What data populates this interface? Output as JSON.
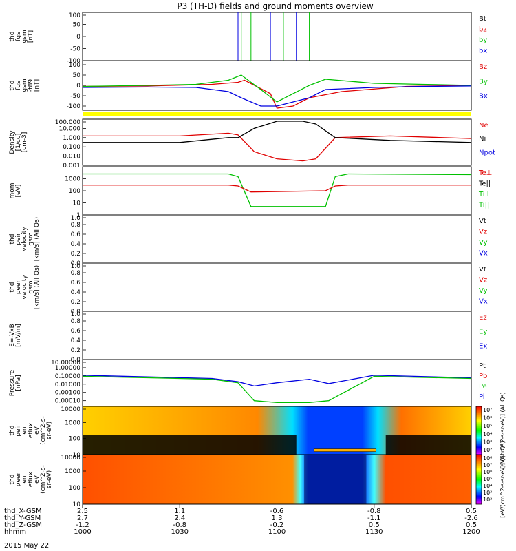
{
  "title": "P3 (TH-D) fields and ground moments overview",
  "date_label": "2015 May 22",
  "colors": {
    "black": "#000000",
    "red": "#e00000",
    "green": "#00c000",
    "blue": "#0000e0",
    "yellow": "#ffff00"
  },
  "chart_data": [
    {
      "type": "line",
      "panel": "fgs",
      "ylabel": [
        "thd",
        "fgs",
        "gsm",
        "[nT]"
      ],
      "yticks": [
        "100",
        "50",
        "0",
        "-50",
        "-100"
      ],
      "ylim": [
        -100,
        100
      ],
      "legend": [
        {
          "name": "Bt",
          "color": "black"
        },
        {
          "name": "bz",
          "color": "red"
        },
        {
          "name": "by",
          "color": "green"
        },
        {
          "name": "bx",
          "color": "blue"
        }
      ],
      "note": "mostly off-scale; vertical traces near 1045–1110 UT"
    },
    {
      "type": "line",
      "panel": "fgs_dsl",
      "ylabel": [
        "thd",
        "fgs",
        "gsm",
        "-t89",
        "[nT]"
      ],
      "yticks": [
        "100",
        "50",
        "0",
        "-50",
        "-100"
      ],
      "ylim": [
        -120,
        120
      ],
      "legend": [
        {
          "name": "Bz",
          "color": "red"
        },
        {
          "name": "By",
          "color": "green"
        },
        {
          "name": "Bx",
          "color": "blue"
        }
      ],
      "series": [
        {
          "name": "Bz",
          "x": [
            1000,
            1020,
            1040,
            1048,
            1050,
            1058,
            1100,
            1105,
            1110,
            1120,
            1140,
            1200
          ],
          "y": [
            -5,
            -3,
            5,
            15,
            25,
            -40,
            -110,
            -100,
            -60,
            -30,
            -5,
            0
          ]
        },
        {
          "name": "By",
          "x": [
            1000,
            1020,
            1035,
            1045,
            1049,
            1055,
            1100,
            1110,
            1115,
            1130,
            1145,
            1200
          ],
          "y": [
            -5,
            0,
            5,
            25,
            50,
            -20,
            -80,
            0,
            30,
            10,
            5,
            0
          ]
        },
        {
          "name": "Bx",
          "x": [
            1000,
            1020,
            1035,
            1045,
            1049,
            1055,
            1100,
            1110,
            1115,
            1130,
            1145,
            1200
          ],
          "y": [
            -10,
            -8,
            -10,
            -30,
            -60,
            -100,
            -100,
            -60,
            -20,
            -10,
            -5,
            -3
          ]
        }
      ]
    },
    {
      "type": "line",
      "panel": "density",
      "ylabel": [
        "Density",
        "[1/cc]",
        "[cm-3]"
      ],
      "log": true,
      "yticks": [
        "100.000",
        "10.000",
        "1.000",
        "0.100",
        "0.010",
        "0.001"
      ],
      "ylim": [
        0.001,
        100
      ],
      "legend": [
        {
          "name": "Ne",
          "color": "red"
        },
        {
          "name": "Ni",
          "color": "black"
        },
        {
          "name": "Npot",
          "color": "blue"
        }
      ],
      "series": [
        {
          "name": "Ne",
          "x": [
            1000,
            1030,
            1045,
            1048,
            1053,
            1100,
            1108,
            1112,
            1118,
            1135,
            1200
          ],
          "y": [
            1.5,
            1.5,
            3,
            2,
            0.03,
            0.005,
            0.003,
            0.005,
            1,
            1.5,
            0.8
          ]
        },
        {
          "name": "Ni",
          "x": [
            1000,
            1030,
            1045,
            1048,
            1053,
            1100,
            1108,
            1112,
            1118,
            1135,
            1200
          ],
          "y": [
            0.3,
            0.3,
            1,
            1,
            10,
            60,
            60,
            30,
            1,
            0.5,
            0.3
          ]
        }
      ]
    },
    {
      "type": "line",
      "panel": "temperature",
      "ylabel": [
        "mom",
        "[eV]"
      ],
      "log": true,
      "yticks": [
        "1000",
        "100",
        "10",
        "1"
      ],
      "ylim": [
        1,
        10000
      ],
      "legend": [
        {
          "name": "Te⊥",
          "color": "red"
        },
        {
          "name": "Te||",
          "color": "black"
        },
        {
          "name": "Ti⊥",
          "color": "green"
        },
        {
          "name": "Ti||",
          "color": "green"
        }
      ],
      "series": [
        {
          "name": "Ti",
          "x": [
            1000,
            1045,
            1048,
            1052,
            1115,
            1118,
            1122,
            1200
          ],
          "y": [
            2500,
            2500,
            1500,
            5,
            5,
            1500,
            2500,
            2200
          ]
        },
        {
          "name": "Te",
          "x": [
            1000,
            1045,
            1048,
            1052,
            1115,
            1118,
            1122,
            1200
          ],
          "y": [
            300,
            300,
            250,
            80,
            100,
            250,
            300,
            300
          ]
        }
      ]
    },
    {
      "type": "line",
      "panel": "peir_velocity",
      "ylabel": [
        "thd",
        "peir",
        "velocity",
        "gsm",
        "[km/s] (All Qs)"
      ],
      "yticks": [
        "1.0",
        "0.8",
        "0.6",
        "0.4",
        "0.2",
        "0.0"
      ],
      "ylim": [
        0,
        1
      ],
      "legend": [
        {
          "name": "Vt",
          "color": "black"
        },
        {
          "name": "Vz",
          "color": "red"
        },
        {
          "name": "Vy",
          "color": "green"
        },
        {
          "name": "Vx",
          "color": "blue"
        }
      ]
    },
    {
      "type": "line",
      "panel": "peer_velocity",
      "ylabel": [
        "thd",
        "peer",
        "velocity",
        "gsm",
        "[km/s] (All Qs)"
      ],
      "yticks": [
        "1.0",
        "0.8",
        "0.6",
        "0.4",
        "0.2",
        "0.0"
      ],
      "ylim": [
        0,
        1
      ],
      "legend": [
        {
          "name": "Vt",
          "color": "black"
        },
        {
          "name": "Vz",
          "color": "red"
        },
        {
          "name": "Vy",
          "color": "green"
        },
        {
          "name": "Vx",
          "color": "blue"
        }
      ]
    },
    {
      "type": "line",
      "panel": "efield",
      "ylabel": [
        "E=-VxB",
        "[mV/m]"
      ],
      "yticks": [
        "1.0",
        "0.8",
        "0.6",
        "0.4",
        "0.2",
        "0.0"
      ],
      "ylim": [
        0,
        1
      ],
      "legend": [
        {
          "name": "Ez",
          "color": "red"
        },
        {
          "name": "Ey",
          "color": "green"
        },
        {
          "name": "Ex",
          "color": "blue"
        }
      ]
    },
    {
      "type": "line",
      "panel": "pressure",
      "ylabel": [
        "Pressure",
        "[nPa]"
      ],
      "log": true,
      "yticks": [
        "10.00000",
        "1.00000",
        "0.10000",
        "0.01000",
        "0.00100",
        "0.00010"
      ],
      "ylim": [
        2e-05,
        10
      ],
      "legend": [
        {
          "name": "Pt",
          "color": "black"
        },
        {
          "name": "Pb",
          "color": "red"
        },
        {
          "name": "Pe",
          "color": "green"
        },
        {
          "name": "Pi",
          "color": "blue"
        }
      ],
      "series": [
        {
          "name": "Pi",
          "x": [
            1000,
            1040,
            1048,
            1053,
            1100,
            1110,
            1116,
            1130,
            1200
          ],
          "y": [
            0.12,
            0.05,
            0.02,
            0.006,
            0.015,
            0.04,
            0.012,
            0.12,
            0.06
          ]
        },
        {
          "name": "Pe",
          "x": [
            1000,
            1040,
            1048,
            1053,
            1100,
            1110,
            1116,
            1130,
            1200
          ],
          "y": [
            0.09,
            0.04,
            0.015,
            0.0001,
            6e-05,
            6e-05,
            0.0001,
            0.09,
            0.05
          ]
        }
      ]
    },
    {
      "type": "heatmap",
      "panel": "peir_spectrogram",
      "ylabel": [
        "thd",
        "peir",
        "en",
        "eflux",
        "eV",
        "(cm^2-s-",
        "sr-eV)"
      ],
      "log": true,
      "yticks": [
        "10000",
        "1000",
        "100",
        "10"
      ],
      "colorbar": {
        "ticks": [
          "10⁷",
          "10⁶",
          "10⁵",
          "10⁴",
          "10³",
          "10²"
        ],
        "label": "[eV/(cm^2-s-sr-eV)] (All Qs)"
      }
    },
    {
      "type": "heatmap",
      "panel": "peer_spectrogram",
      "ylabel": [
        "thd",
        "peer",
        "en",
        "eflux",
        "eV",
        "(cm^2-s-",
        "sr-eV)"
      ],
      "log": true,
      "yticks": [
        "10000",
        "1000",
        "100",
        "10"
      ],
      "colorbar": {
        "ticks": [
          "10⁸",
          "10⁷",
          "10⁶",
          "10⁵",
          "10⁴",
          "10³",
          "10²"
        ],
        "label": "[eV/(cm^2-s-sr-eV)] (All Qs)"
      }
    }
  ],
  "xaxis": {
    "time": {
      "label": "hhmm",
      "ticks": [
        "1000",
        "1030",
        "1100",
        "1130",
        "1200"
      ],
      "range": [
        1000,
        1200
      ]
    },
    "rows": [
      {
        "label": "thd_X-GSM",
        "values": [
          "2.5",
          "1.1",
          "-0.6",
          "-0.8",
          "0.5"
        ]
      },
      {
        "label": "thd_Y-GSM",
        "values": [
          "2.7",
          "2.4",
          "1.3",
          "-1.1",
          "-2.6"
        ]
      },
      {
        "label": "thd_Z-GSM",
        "values": [
          "-1.2",
          "-0.8",
          "-0.2",
          "0.5",
          "0.5"
        ]
      }
    ]
  }
}
